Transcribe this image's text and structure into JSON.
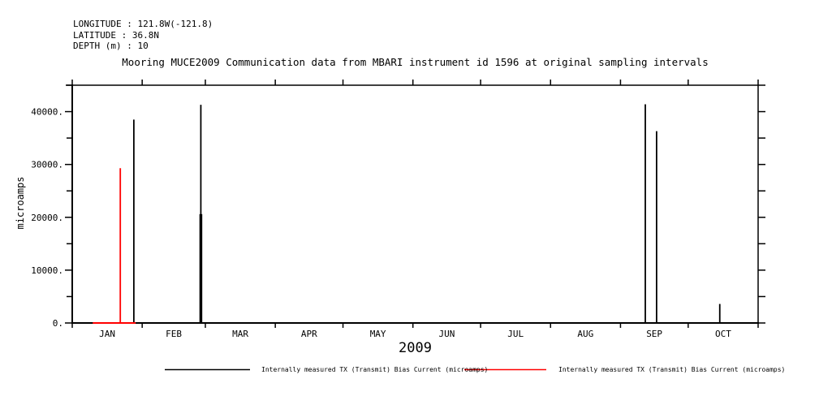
{
  "header": {
    "line1": "LONGITUDE : 121.8W(-121.8)",
    "line2": "LATITUDE : 36.8N",
    "line3": "DEPTH (m) : 10"
  },
  "title": "Mooring MUCE2009 Communication data from MBARI instrument id 1596 at original sampling intervals",
  "colors": {
    "background": "#ffffff",
    "axis": "#000000",
    "series_black": "#000000",
    "series_red": "#ff0000"
  },
  "chart_data": {
    "type": "line",
    "title": "Mooring MUCE2009 Communication data from MBARI instrument id 1596 at original sampling intervals",
    "xlabel": "2009",
    "ylabel": "microamps",
    "grid": false,
    "legend_position": "bottom",
    "x_axis": {
      "label": "2009",
      "range_days": [
        0,
        304
      ],
      "month_labels": [
        "JAN",
        "FEB",
        "MAR",
        "APR",
        "MAY",
        "JUN",
        "JUL",
        "AUG",
        "SEP",
        "OCT"
      ],
      "month_boundaries_days": [
        0,
        31,
        59,
        90,
        120,
        151,
        181,
        212,
        243,
        273,
        304
      ]
    },
    "y_axis": {
      "label": "microamps",
      "range": [
        0,
        45000
      ],
      "major_ticks": [
        0,
        10000,
        20000,
        30000,
        40000
      ],
      "major_tick_labels": [
        "0.",
        "10000.",
        "20000.",
        "30000.",
        "40000."
      ],
      "minor_ticks": [
        5000,
        15000,
        25000,
        35000,
        45000
      ],
      "right_tick_step": 5000
    },
    "series": [
      {
        "name": "Internally measured TX (Transmit) Bias Current (microamps)",
        "color": "#000000",
        "spikes": [
          {
            "date": "Jan 28",
            "day": 27.3,
            "value": 38500
          },
          {
            "date": "Feb 26",
            "day": 57.0,
            "value": 41300,
            "dense_to": 20600
          },
          {
            "date": "Sep 11",
            "day": 254.0,
            "value": 41400
          },
          {
            "date": "Sep 16",
            "day": 259.0,
            "value": 36300
          },
          {
            "date": "Oct 15",
            "day": 287.0,
            "value": 3600
          }
        ]
      },
      {
        "name": "Internally measured TX (Transmit) Bias Current (microamps)",
        "color": "#ff0000",
        "baseline": {
          "day_start": 9.1,
          "day_end": 28.1,
          "value": 0
        },
        "spikes": [
          {
            "date": "Jan 22",
            "day": 21.3,
            "value": 29300
          }
        ]
      }
    ],
    "legend": [
      {
        "label": "Internally measured TX (Transmit) Bias Current (microamps)",
        "color": "#000000"
      },
      {
        "label": "Internally measured TX (Transmit) Bias Current (microamps)",
        "color": "#ff0000"
      }
    ]
  }
}
